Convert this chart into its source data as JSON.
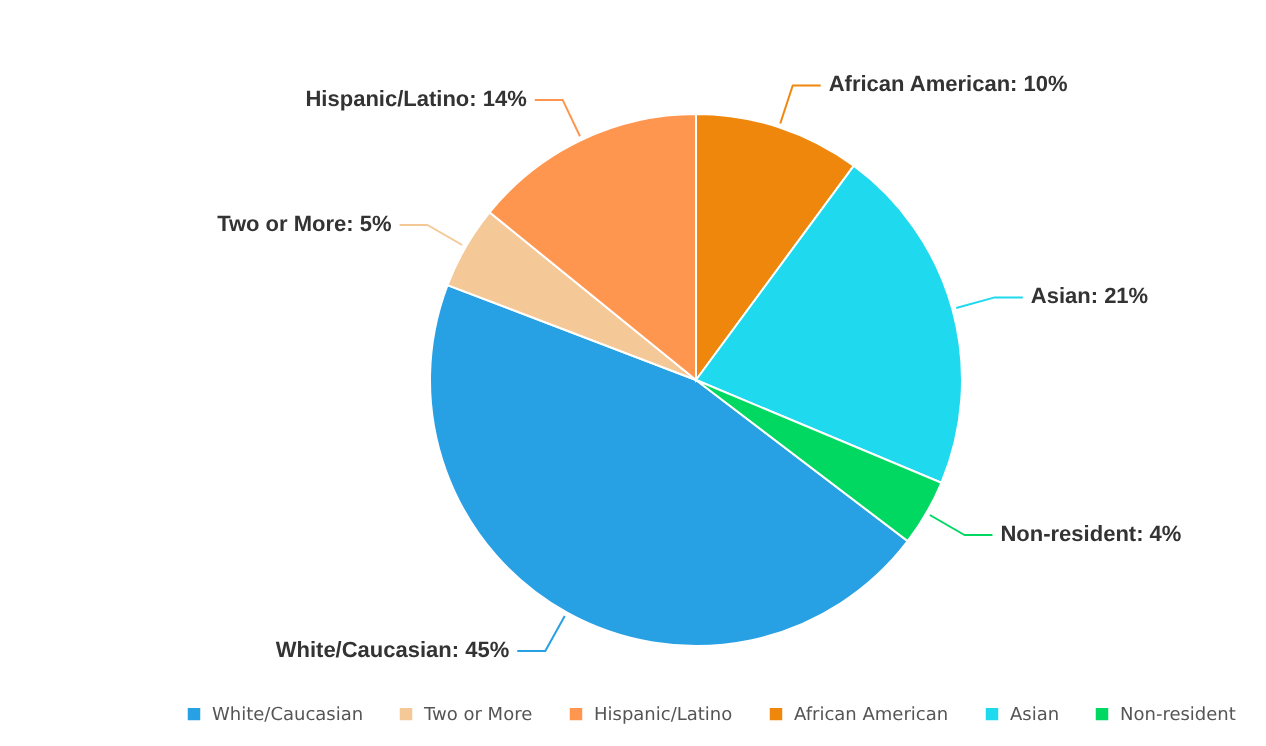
{
  "chart_data": {
    "type": "pie",
    "categories": [
      "White/Caucasian",
      "Two or More",
      "Hispanic/Latino",
      "African American",
      "Asian",
      "Non-resident"
    ],
    "values": [
      45,
      5,
      14,
      10,
      21,
      4
    ],
    "colors": [
      "#28a0e4",
      "#f5c897",
      "#ff9650",
      "#f0870d",
      "#1fd9ef",
      "#00d862"
    ],
    "value_labels": [
      "White/Caucasian: 45%",
      "Two or More: 5%",
      "Hispanic/Latino: 14%",
      "African American: 10%",
      "Asian: 21%",
      "Non-resident: 4%"
    ],
    "legend": "bottom"
  }
}
